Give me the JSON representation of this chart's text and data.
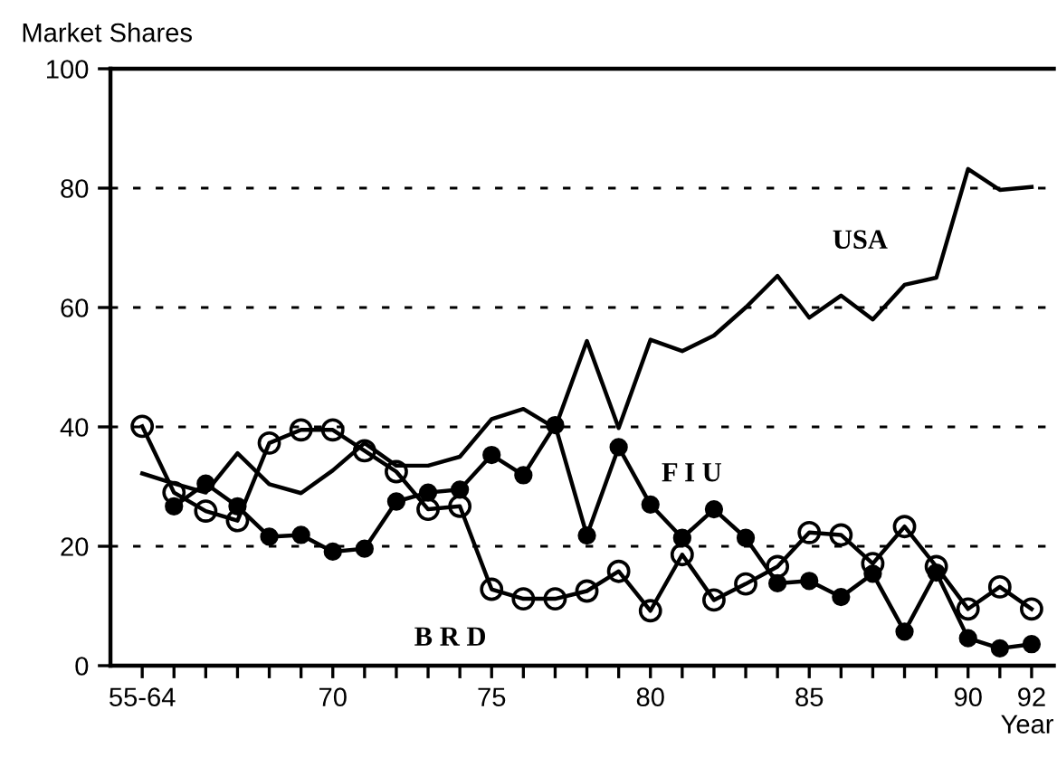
{
  "chart_data": {
    "type": "line",
    "ylabel": "Market Shares",
    "xlabel": "Year",
    "categories": [
      "55-64",
      null,
      null,
      null,
      null,
      null,
      "70",
      null,
      null,
      null,
      null,
      "75",
      null,
      null,
      null,
      null,
      "80",
      null,
      null,
      null,
      null,
      "85",
      null,
      null,
      null,
      null,
      "90",
      null,
      "92"
    ],
    "series": [
      {
        "name": "USA",
        "color": "#000000",
        "marker": "none",
        "values": [
          32.2,
          30.5,
          29,
          35.6,
          30.4,
          28.9,
          32.7,
          37.3,
          33.5,
          33.5,
          35,
          41.3,
          43,
          39.8,
          54.4,
          39.8,
          54.6,
          52.7,
          55.3,
          60,
          65.3,
          58.3,
          62,
          58,
          63.8,
          65,
          83.2,
          79.7,
          80.2
        ]
      },
      {
        "name": "F I U",
        "color": "#000000",
        "marker": "filled circle",
        "values": [
          null,
          26.7,
          30.5,
          26.7,
          21.6,
          21.9,
          19.1,
          19.6,
          27.5,
          29,
          29.5,
          35.3,
          31.9,
          40.3,
          21.8,
          36.6,
          27,
          21.4,
          26.2,
          21.4,
          13.8,
          14.2,
          11.5,
          15.4,
          5.7,
          15.6,
          4.6,
          2.9,
          3.6
        ]
      },
      {
        "name": "B R D",
        "color": "#000000",
        "marker": "circle",
        "values": [
          40.1,
          29,
          25.9,
          24.3,
          37.3,
          39.5,
          39.5,
          36,
          32.5,
          26.2,
          26.7,
          12.8,
          11.2,
          11.2,
          12.5,
          15.8,
          9.2,
          18.6,
          11,
          13.7,
          16.6,
          22.3,
          21.9,
          17.1,
          23.3,
          16.6,
          9.5,
          13.2,
          9.5
        ]
      }
    ],
    "ylim": [
      0,
      100
    ],
    "yticks": [
      0,
      20,
      40,
      60,
      80,
      100
    ],
    "grid": "y",
    "legend": false,
    "line_style": "solid"
  }
}
